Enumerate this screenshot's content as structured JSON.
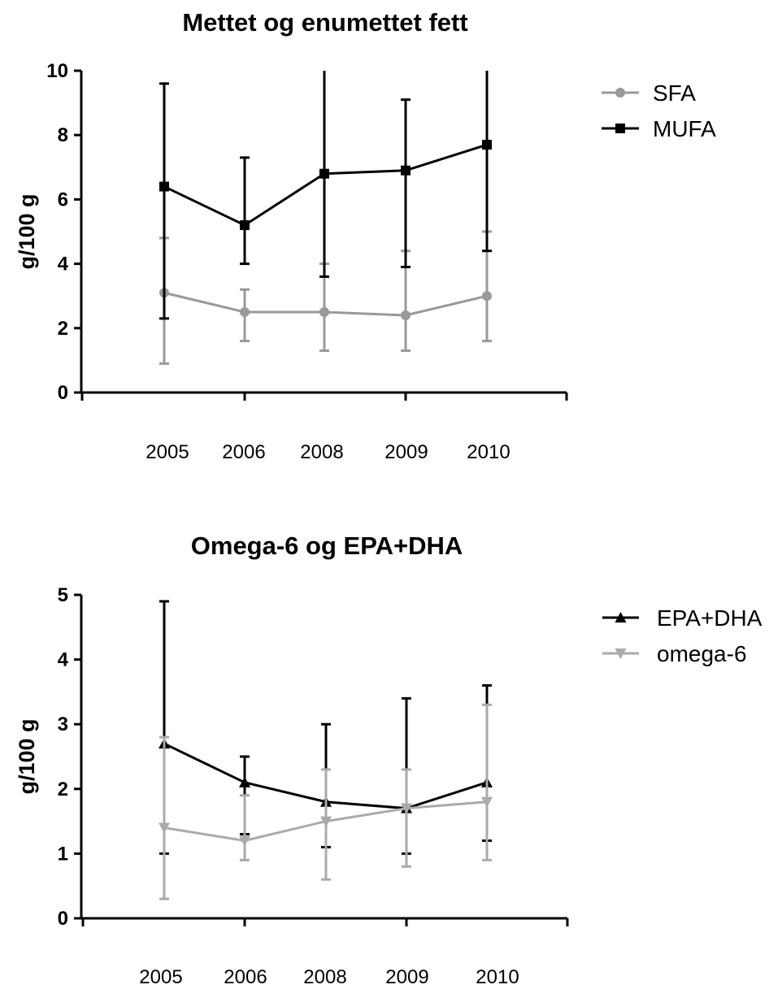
{
  "chart_data": [
    {
      "type": "line",
      "title": "Mettet og enumettet fett",
      "xlabel": "",
      "ylabel": "g/100 g",
      "categories": [
        "2005",
        "2006",
        "2008",
        "2009",
        "2010"
      ],
      "ylim": [
        0,
        10
      ],
      "yticks": [
        "0",
        "2",
        "4",
        "6",
        "8",
        "10"
      ],
      "legend_position": "top-right",
      "series": [
        {
          "name": "SFA",
          "color": "#999999",
          "marker": "circle",
          "values": [
            3.1,
            2.5,
            2.5,
            2.4,
            3.0
          ],
          "error_upper": [
            4.8,
            3.2,
            4.0,
            4.4,
            5.0
          ],
          "error_lower": [
            0.9,
            1.6,
            1.3,
            1.3,
            1.6
          ]
        },
        {
          "name": "MUFA",
          "color": "#000000",
          "marker": "square",
          "values": [
            6.4,
            5.2,
            6.8,
            6.9,
            7.7
          ],
          "error_upper": [
            9.6,
            7.3,
            10,
            9.1,
            10
          ],
          "error_lower": [
            2.3,
            4.0,
            3.6,
            3.9,
            4.4
          ]
        }
      ]
    },
    {
      "type": "line",
      "title": "Omega-6 og EPA+DHA",
      "xlabel": "",
      "ylabel": "g/100 g",
      "categories": [
        "2005",
        "2006",
        "2008",
        "2009",
        "2010"
      ],
      "ylim": [
        0,
        5
      ],
      "yticks": [
        "0",
        "1",
        "2",
        "3",
        "4",
        "5"
      ],
      "legend_position": "top-right",
      "series": [
        {
          "name": "EPA+DHA",
          "color": "#000000",
          "marker": "triangle-up",
          "values": [
            2.7,
            2.1,
            1.8,
            1.7,
            2.1
          ],
          "error_upper": [
            4.9,
            2.5,
            3.0,
            3.4,
            3.6
          ],
          "error_lower": [
            1.0,
            1.3,
            1.1,
            1.0,
            1.2
          ]
        },
        {
          "name": "omega-6",
          "color": "#aaaaaa",
          "marker": "triangle-down",
          "values": [
            1.4,
            1.2,
            1.5,
            1.7,
            1.8
          ],
          "error_upper": [
            2.8,
            1.9,
            2.3,
            2.3,
            3.3
          ],
          "error_lower": [
            0.3,
            0.9,
            0.6,
            0.8,
            0.9
          ]
        }
      ]
    }
  ]
}
